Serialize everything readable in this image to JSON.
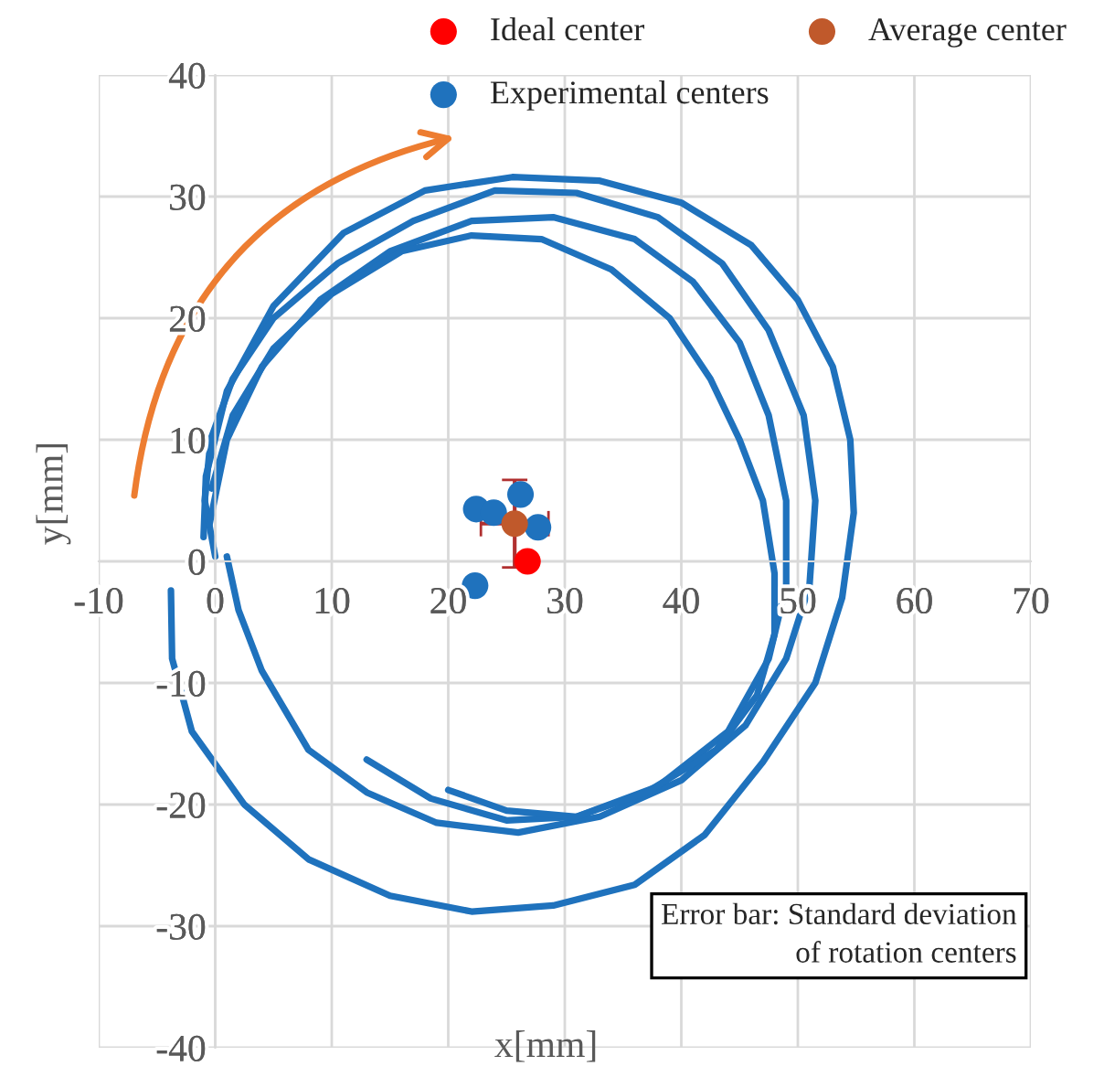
{
  "chart_data": {
    "type": "scatter",
    "xlabel": "x[mm]",
    "ylabel": "y[mm]",
    "xlim": [
      -10,
      70
    ],
    "ylim": [
      -40,
      40
    ],
    "xticks": [
      -10,
      0,
      10,
      20,
      30,
      40,
      50,
      60,
      70
    ],
    "yticks": [
      -40,
      -30,
      -20,
      -10,
      0,
      10,
      20,
      30,
      40
    ],
    "grid": true,
    "legend": "top right",
    "marker": "circle",
    "annotations": [
      "Error bar: Standard deviation\nof rotation centers"
    ],
    "series": [
      {
        "name": "Ideal center",
        "color": "#ff0000",
        "x": [
          26.8
        ],
        "values": [
          0
        ]
      },
      {
        "name": "Experimental centers",
        "color": "#1f72bd",
        "x": [
          22.4,
          23.9,
          26.2,
          27.7,
          22.3
        ],
        "values": [
          4.3,
          4.0,
          5.5,
          2.8,
          -2.0
        ]
      },
      {
        "name": "Average center",
        "color": "#c0592b",
        "x": [
          25.7
        ],
        "values": [
          3.1
        ],
        "errors": [
          3.6
        ],
        "xerrors": [
          2.9
        ]
      },
      {
        "type": "line",
        "marker": "none",
        "color": "#1f72bd",
        "x": [
          -3.8,
          -3.7,
          -2,
          2.5,
          8,
          15,
          22,
          29,
          36,
          42,
          47,
          51.5,
          53.8,
          54.8,
          54.5,
          53,
          50,
          46,
          40,
          33,
          25.5,
          18,
          11,
          5,
          1,
          -0.8,
          -1
        ],
        "values": [
          -2.4,
          -8,
          -14,
          -20,
          -24.5,
          -27.5,
          -28.8,
          -28.3,
          -26.6,
          -22.5,
          -16.5,
          -10,
          -3,
          4,
          10,
          16,
          21.5,
          26,
          29.5,
          31.3,
          31.6,
          30.5,
          27,
          21,
          14,
          7,
          2
        ]
      },
      {
        "type": "line",
        "marker": "none",
        "color": "#1f72bd",
        "x": [
          0,
          -0.9,
          -0.4,
          1.5,
          5,
          10.5,
          17,
          24,
          31,
          38,
          43.5,
          47.5,
          50.5,
          51.5,
          51,
          49,
          45.5,
          40,
          33,
          26,
          19,
          13,
          8,
          4,
          2,
          1
        ],
        "values": [
          0.4,
          5,
          10,
          15,
          20,
          24.5,
          28,
          30.5,
          30.3,
          28.3,
          24.5,
          19,
          12,
          5,
          -2,
          -8,
          -13.5,
          -18,
          -21,
          -22.3,
          -21.5,
          -19,
          -15.5,
          -9,
          -4,
          0.4
        ]
      },
      {
        "type": "line",
        "marker": "none",
        "color": "#1f72bd",
        "x": [
          -0.5,
          1,
          4,
          9,
          15,
          22,
          29,
          36,
          41,
          45,
          47.5,
          49,
          49,
          47.5,
          44,
          38,
          31,
          25,
          18.5,
          13
        ],
        "values": [
          3,
          10,
          16,
          21.5,
          25.5,
          28,
          28.3,
          26.5,
          23,
          18,
          12,
          5,
          -2,
          -8,
          -14,
          -18.5,
          -21,
          -21.3,
          -19.5,
          -16.3
        ]
      },
      {
        "type": "line",
        "marker": "none",
        "color": "#1f72bd",
        "x": [
          -0.3,
          1.5,
          5,
          10,
          16,
          22,
          28,
          34,
          39,
          42.5,
          45,
          47,
          48,
          48,
          46.5,
          43,
          37,
          31,
          25,
          20
        ],
        "values": [
          6,
          12,
          17.5,
          22,
          25.5,
          26.8,
          26.5,
          24,
          20,
          15,
          10,
          5,
          -1,
          -6,
          -11,
          -15.5,
          -19,
          -21,
          -20.5,
          -18.8
        ]
      }
    ]
  }
}
